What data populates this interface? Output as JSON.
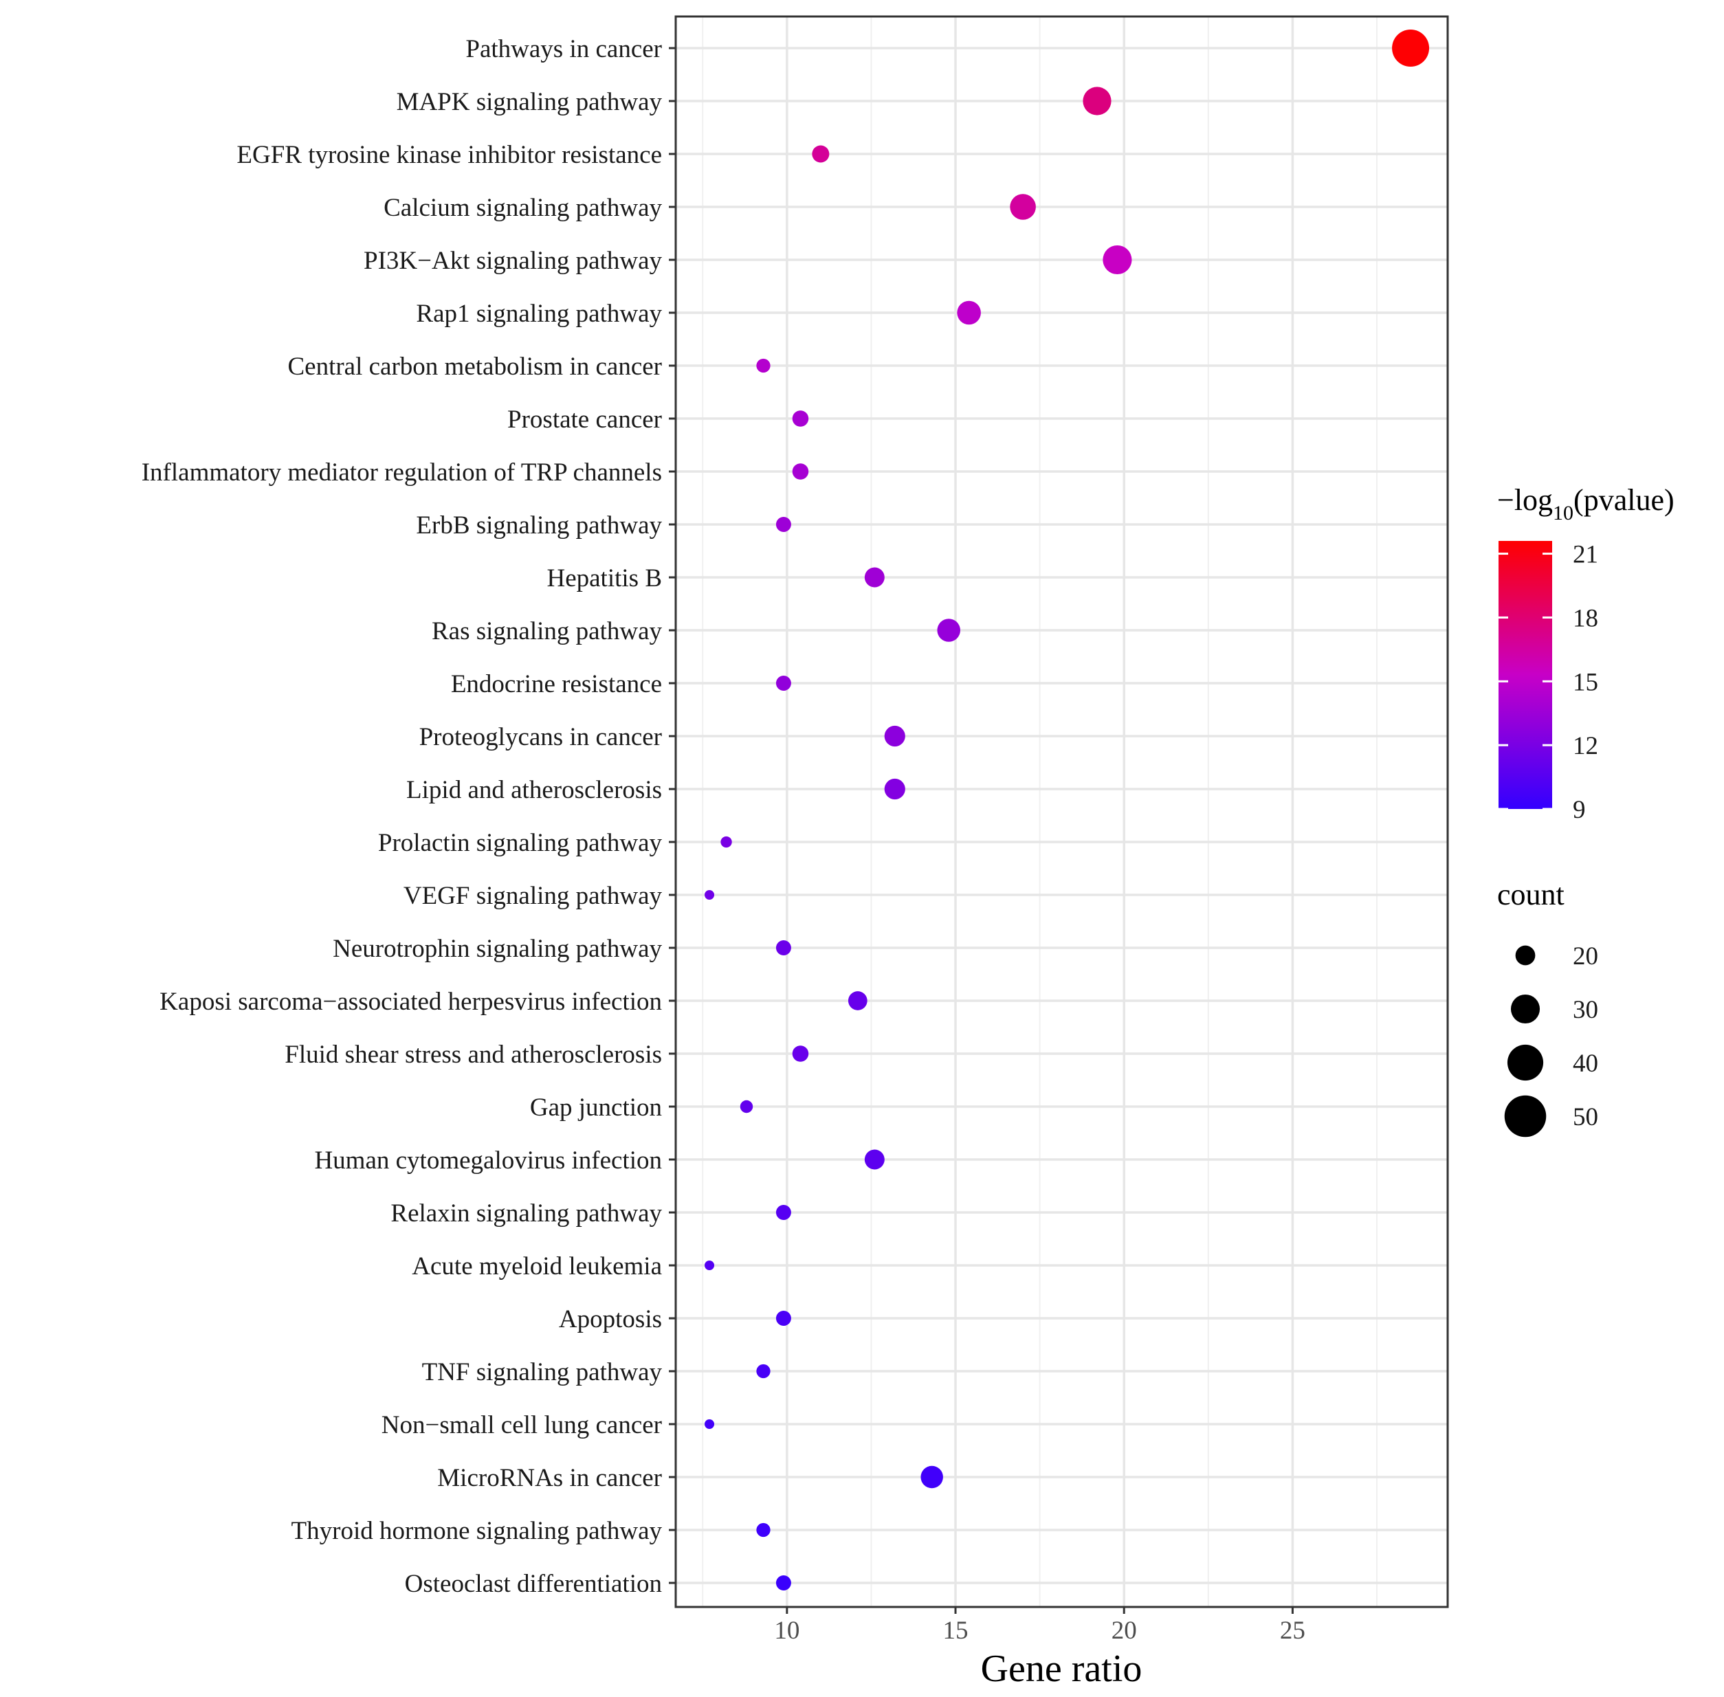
{
  "chart_data": {
    "type": "scatter",
    "title": "",
    "xlabel": "Gene ratio",
    "ylabel": "",
    "xlim": [
      6.7,
      29.6
    ],
    "x_ticks": [
      10,
      15,
      20,
      25
    ],
    "grid": true,
    "categories": [
      "Pathways in cancer",
      "MAPK signaling pathway",
      "EGFR tyrosine kinase inhibitor resistance",
      "Calcium signaling pathway",
      "PI3K−Akt signaling pathway",
      "Rap1 signaling pathway",
      "Central carbon metabolism in cancer",
      "Prostate cancer",
      "Inflammatory mediator regulation of TRP channels",
      "ErbB signaling pathway",
      "Hepatitis B",
      "Ras signaling pathway",
      "Endocrine resistance",
      "Proteoglycans in cancer",
      "Lipid and atherosclerosis",
      "Prolactin signaling pathway",
      "VEGF signaling pathway",
      "Neurotrophin signaling pathway",
      "Kaposi sarcoma−associated herpesvirus infection",
      "Fluid shear stress and atherosclerosis",
      "Gap junction",
      "Human cytomegalovirus infection",
      "Relaxin signaling pathway",
      "Acute myeloid leukemia",
      "Apoptosis",
      "TNF signaling pathway",
      "Non−small cell lung cancer",
      "MicroRNAs in cancer",
      "Thyroid hormone signaling pathway",
      "Osteoclast differentiation"
    ],
    "gene_ratio": [
      28.5,
      19.2,
      11.0,
      17.0,
      19.8,
      15.4,
      9.3,
      10.4,
      10.4,
      9.9,
      12.6,
      14.8,
      9.9,
      13.2,
      13.2,
      8.2,
      7.7,
      9.9,
      12.1,
      10.4,
      8.8,
      12.6,
      9.9,
      7.7,
      9.9,
      9.3,
      7.7,
      14.3,
      9.3,
      9.9
    ],
    "count": [
      52,
      35,
      20,
      31,
      36,
      28,
      17,
      19,
      19,
      18,
      23,
      27,
      18,
      24,
      24,
      15,
      14,
      18,
      22,
      19,
      16,
      23,
      18,
      14,
      18,
      17,
      14,
      26,
      17,
      18
    ],
    "neg_log10_pvalue": [
      21.5,
      17.6,
      16.8,
      16.6,
      15.4,
      14.9,
      14.5,
      14.0,
      13.9,
      13.5,
      13.6,
      13.2,
      13.0,
      12.8,
      12.4,
      12.0,
      11.6,
      11.4,
      11.2,
      11.3,
      11.0,
      10.8,
      10.5,
      10.4,
      10.0,
      9.9,
      9.7,
      9.6,
      9.5,
      9.3
    ],
    "color_legend": {
      "title_prefix": "−log",
      "title_subscript": "10",
      "title_suffix": "(pvalue)",
      "min": 9,
      "max": 21.6,
      "ticks": [
        9,
        12,
        15,
        18,
        21
      ],
      "low_color": "#3300ff",
      "high_color": "#ff0000"
    },
    "size_legend": {
      "title": "count",
      "values": [
        20,
        30,
        40,
        50
      ]
    },
    "size_range": [
      14,
      54
    ],
    "point_size_domain": [
      14,
      52
    ]
  }
}
